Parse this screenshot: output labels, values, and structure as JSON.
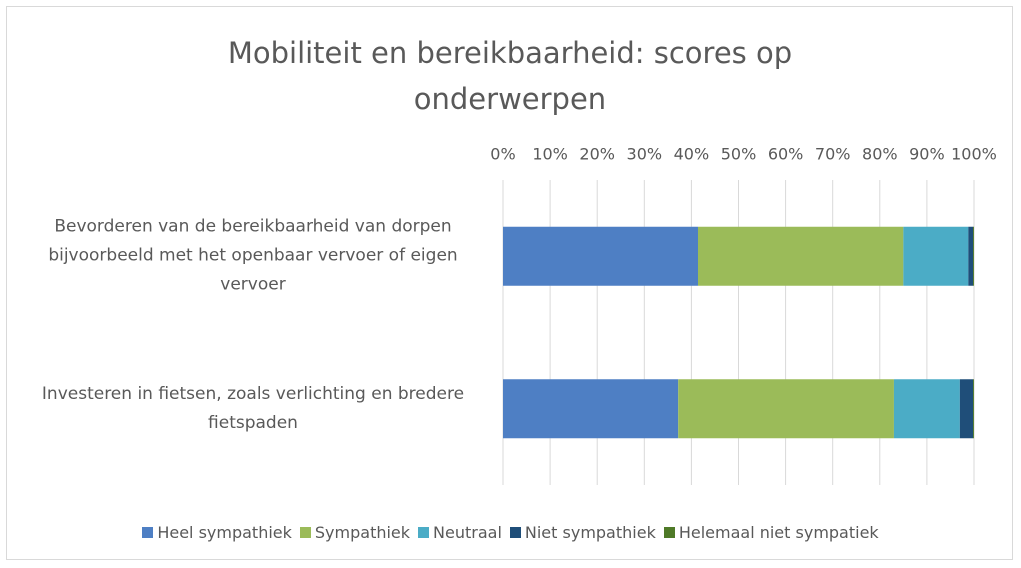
{
  "chart_data": {
    "type": "stacked_barh",
    "title": "Mobiliteit en bereikbaarheid: scores op onderwerpen",
    "categories": [
      "Bevorderen van de bereikbaarheid van dorpen bijvoorbeeld met het openbaar vervoer of eigen vervoer",
      "Investeren in fietsen, zoals verlichting  en bredere fietspaden"
    ],
    "series": [
      {
        "name": "Heel sympathiek",
        "color": "#4e7fc4",
        "values": [
          41.4,
          37.2
        ]
      },
      {
        "name": "Sympathiek",
        "color": "#9bbb59",
        "values": [
          43.6,
          45.8
        ]
      },
      {
        "name": "Neutraal",
        "color": "#4bacc6",
        "values": [
          13.8,
          14.0
        ]
      },
      {
        "name": "Niet sympathiek",
        "color": "#1f4e79",
        "values": [
          1.0,
          2.8
        ]
      },
      {
        "name": "Helemaal niet sympatiek",
        "color": "#4f7a28",
        "values": [
          0.2,
          0.2
        ]
      }
    ],
    "xlim": [
      0,
      100
    ],
    "xticks": [
      {
        "value": 0,
        "label": "0%"
      },
      {
        "value": 10,
        "label": "10%"
      },
      {
        "value": 20,
        "label": "20%"
      },
      {
        "value": 30,
        "label": "30%"
      },
      {
        "value": 40,
        "label": "40%"
      },
      {
        "value": 50,
        "label": "50%"
      },
      {
        "value": 60,
        "label": "60%"
      },
      {
        "value": 70,
        "label": "70%"
      },
      {
        "value": 80,
        "label": "80%"
      },
      {
        "value": 90,
        "label": "90%"
      },
      {
        "value": 100,
        "label": "100%"
      }
    ],
    "grid": true
  }
}
